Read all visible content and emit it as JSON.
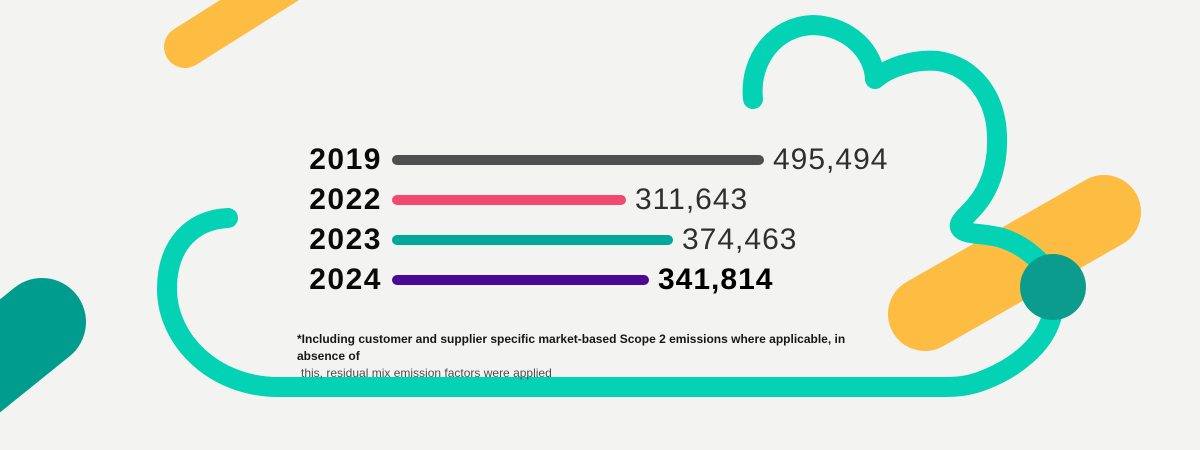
{
  "background": "#f3f3f2",
  "chart_data": {
    "type": "bar",
    "orientation": "horizontal",
    "categories": [
      "2019",
      "2022",
      "2023",
      "2024"
    ],
    "values": [
      495494,
      311643,
      374463,
      341814
    ],
    "value_labels": [
      "495,494",
      "311,643",
      "374,463",
      "341,814"
    ],
    "bar_colors": [
      "#4f4f4f",
      "#f1496f",
      "#00a89b",
      "#4a0a96"
    ],
    "emphasized_category": "2024",
    "xlim": [
      0,
      500000
    ],
    "grid": false,
    "legend": "none",
    "axis_labels": "none"
  },
  "footnote": {
    "line1": "*Including customer and supplier specific market-based Scope 2 emissions where applicable, in absence of",
    "line2": "this, residual mix emission factors were applied"
  },
  "decorations": {
    "cloud_outline_color": "#03d2b4",
    "dark_teal_color": "#009c8e",
    "yellow_color": "#fcbd42",
    "circle_color": "#0b9c8e"
  }
}
